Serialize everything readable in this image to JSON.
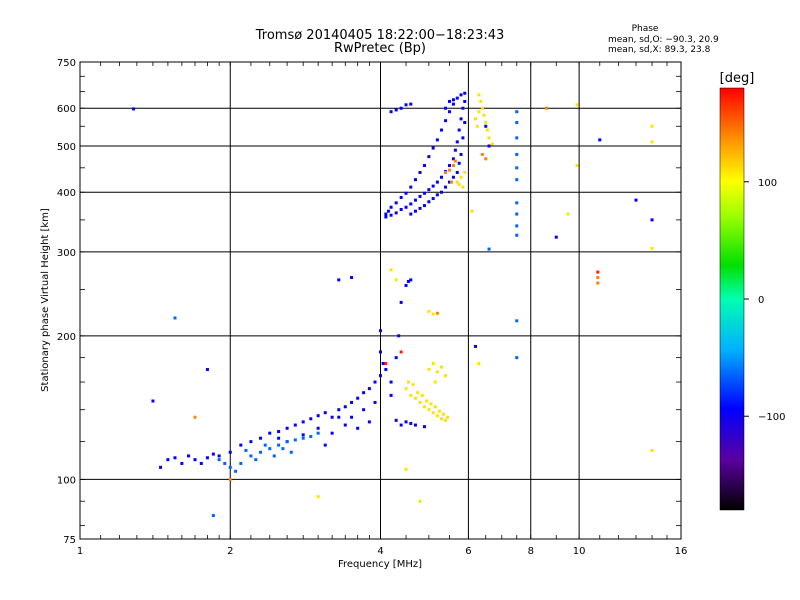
{
  "chart_data": {
    "type": "scatter",
    "title": "Tromsø 20140405 18:22:00−18:23:43",
    "subtitle": "RwPretec (Bp)",
    "xlabel": "Frequency [MHz]",
    "ylabel": "Stationary phase Virtual Height [km]",
    "x_scale": "log2",
    "y_scale": "log",
    "xlim": [
      1,
      16
    ],
    "ylim": [
      75,
      750
    ],
    "x_ticks": [
      1,
      2,
      4,
      6,
      8,
      10,
      16
    ],
    "x_tick_labels": [
      "1",
      "2",
      "4",
      "6",
      "8",
      "10",
      "16"
    ],
    "x_gridlines": [
      2,
      4,
      6,
      8,
      10
    ],
    "y_ticks": [
      75,
      100,
      200,
      300,
      400,
      500,
      600,
      750
    ],
    "y_tick_labels": [
      "75",
      "100",
      "200",
      "300",
      "400",
      "500",
      "600",
      "750"
    ],
    "y_gridlines": [
      100,
      200,
      300,
      400,
      500,
      600
    ],
    "grid": true,
    "legend_title": "Phase",
    "legend_lines": [
      "mean, sd,O: −90.3, 20.9",
      "mean, sd,X:  89.3, 23.8"
    ],
    "legend_position": "top-right",
    "colorbar": {
      "label": "[deg]",
      "min": -180,
      "max": 180,
      "ticks": [
        100,
        0,
        -100
      ],
      "tick_labels": [
        "100",
        "0",
        "−100"
      ],
      "colormap": "rainbow"
    },
    "series": [
      {
        "color_value_deg": -95,
        "points": [
          [
            1.28,
            598
          ],
          [
            1.4,
            146
          ],
          [
            1.45,
            106
          ],
          [
            1.5,
            110
          ],
          [
            1.55,
            111
          ],
          [
            1.6,
            108
          ],
          [
            1.65,
            112
          ],
          [
            1.7,
            110
          ],
          [
            1.75,
            108
          ],
          [
            1.8,
            111
          ],
          [
            1.85,
            113
          ],
          [
            1.9,
            112
          ],
          [
            2.0,
            114
          ],
          [
            2.1,
            118
          ],
          [
            2.2,
            120
          ],
          [
            2.3,
            122
          ],
          [
            2.4,
            125
          ],
          [
            2.5,
            126
          ],
          [
            2.6,
            128
          ],
          [
            2.7,
            130
          ],
          [
            2.8,
            132
          ],
          [
            2.9,
            134
          ],
          [
            3.0,
            136
          ],
          [
            3.1,
            138
          ],
          [
            3.2,
            135
          ],
          [
            3.3,
            140
          ],
          [
            3.4,
            142
          ],
          [
            3.5,
            145
          ],
          [
            3.6,
            148
          ],
          [
            3.7,
            152
          ],
          [
            3.8,
            155
          ],
          [
            3.9,
            160
          ],
          [
            4.0,
            165
          ],
          [
            4.0,
            185
          ],
          [
            4.0,
            205
          ],
          [
            4.05,
            175
          ],
          [
            4.1,
            170
          ],
          [
            4.2,
            160
          ],
          [
            4.3,
            180
          ],
          [
            4.35,
            200
          ],
          [
            4.4,
            235
          ],
          [
            4.5,
            255
          ],
          [
            4.2,
            150
          ],
          [
            4.3,
            133
          ],
          [
            4.5,
            132
          ],
          [
            4.7,
            130
          ],
          [
            4.9,
            129
          ],
          [
            4.4,
            130
          ],
          [
            4.6,
            131
          ],
          [
            3.2,
            125
          ],
          [
            3.4,
            130
          ],
          [
            3.6,
            128
          ],
          [
            3.8,
            132
          ],
          [
            3.0,
            128
          ],
          [
            2.8,
            124
          ],
          [
            3.5,
            135
          ],
          [
            3.7,
            140
          ],
          [
            3.9,
            145
          ],
          [
            2.5,
            122
          ],
          [
            2.6,
            120
          ],
          [
            3.1,
            118
          ],
          [
            3.3,
            135
          ],
          [
            3.5,
            265
          ],
          [
            3.3,
            262
          ],
          [
            4.6,
            262
          ],
          [
            4.55,
            260
          ],
          [
            4.1,
            355
          ],
          [
            4.2,
            358
          ],
          [
            4.3,
            362
          ],
          [
            4.4,
            368
          ],
          [
            4.5,
            372
          ],
          [
            4.6,
            378
          ],
          [
            4.7,
            385
          ],
          [
            4.8,
            392
          ],
          [
            4.9,
            398
          ],
          [
            5.0,
            405
          ],
          [
            5.1,
            412
          ],
          [
            5.2,
            420
          ],
          [
            5.3,
            430
          ],
          [
            5.4,
            442
          ],
          [
            5.5,
            455
          ],
          [
            5.6,
            470
          ],
          [
            5.65,
            490
          ],
          [
            5.7,
            510
          ],
          [
            5.75,
            540
          ],
          [
            5.8,
            570
          ],
          [
            5.85,
            600
          ],
          [
            5.9,
            620
          ],
          [
            5.7,
            630
          ],
          [
            5.6,
            612
          ],
          [
            5.5,
            590
          ],
          [
            5.4,
            565
          ],
          [
            5.3,
            540
          ],
          [
            5.2,
            515
          ],
          [
            5.1,
            495
          ],
          [
            5.0,
            475
          ],
          [
            4.9,
            455
          ],
          [
            4.8,
            440
          ],
          [
            4.7,
            425
          ],
          [
            4.6,
            410
          ],
          [
            4.5,
            398
          ],
          [
            4.4,
            390
          ],
          [
            4.3,
            380
          ],
          [
            4.2,
            372
          ],
          [
            4.15,
            365
          ],
          [
            4.1,
            360
          ],
          [
            4.2,
            590
          ],
          [
            4.3,
            595
          ],
          [
            4.4,
            600
          ],
          [
            4.5,
            610
          ],
          [
            4.6,
            612
          ],
          [
            5.4,
            600
          ],
          [
            5.5,
            620
          ],
          [
            5.6,
            625
          ],
          [
            5.8,
            640
          ],
          [
            5.9,
            645
          ],
          [
            5.9,
            560
          ],
          [
            5.85,
            520
          ],
          [
            5.8,
            480
          ],
          [
            5.75,
            460
          ],
          [
            5.7,
            440
          ],
          [
            5.6,
            430
          ],
          [
            5.5,
            420
          ],
          [
            5.4,
            410
          ],
          [
            5.3,
            400
          ],
          [
            5.2,
            395
          ],
          [
            5.1,
            388
          ],
          [
            5.0,
            382
          ],
          [
            4.9,
            375
          ],
          [
            4.8,
            370
          ],
          [
            4.7,
            365
          ],
          [
            4.6,
            360
          ],
          [
            6.5,
            550
          ],
          [
            6.6,
            500
          ],
          [
            11.0,
            515
          ],
          [
            14.0,
            350
          ],
          [
            13.0,
            385
          ],
          [
            9.0,
            322
          ],
          [
            6.2,
            190
          ],
          [
            1.8,
            170
          ]
        ]
      },
      {
        "color_value_deg": -65,
        "points": [
          [
            1.9,
            110
          ],
          [
            2.0,
            106
          ],
          [
            2.1,
            108
          ],
          [
            2.2,
            112
          ],
          [
            2.3,
            114
          ],
          [
            2.4,
            116
          ],
          [
            2.5,
            118
          ],
          [
            2.6,
            120
          ],
          [
            2.7,
            121
          ],
          [
            2.8,
            122
          ],
          [
            2.9,
            123
          ],
          [
            3.0,
            125
          ],
          [
            2.15,
            115
          ],
          [
            2.25,
            110
          ],
          [
            2.35,
            118
          ],
          [
            2.45,
            112
          ],
          [
            2.55,
            116
          ],
          [
            2.65,
            114
          ],
          [
            1.95,
            108
          ],
          [
            2.05,
            104
          ],
          [
            7.5,
            590
          ],
          [
            7.5,
            560
          ],
          [
            7.5,
            520
          ],
          [
            7.5,
            480
          ],
          [
            7.5,
            450
          ],
          [
            7.5,
            425
          ],
          [
            7.5,
            380
          ],
          [
            7.5,
            360
          ],
          [
            7.5,
            340
          ],
          [
            7.5,
            325
          ],
          [
            7.5,
            215
          ],
          [
            7.5,
            180
          ],
          [
            6.6,
            304
          ],
          [
            1.55,
            218
          ],
          [
            1.85,
            84
          ]
        ]
      },
      {
        "color_value_deg": 110,
        "points": [
          [
            4.5,
            155
          ],
          [
            4.6,
            150
          ],
          [
            4.7,
            148
          ],
          [
            4.8,
            145
          ],
          [
            4.9,
            142
          ],
          [
            5.0,
            140
          ],
          [
            5.1,
            138
          ],
          [
            5.2,
            136
          ],
          [
            5.3,
            134
          ],
          [
            5.4,
            133
          ],
          [
            4.55,
            160
          ],
          [
            4.65,
            158
          ],
          [
            4.75,
            152
          ],
          [
            4.85,
            150
          ],
          [
            4.95,
            146
          ],
          [
            5.05,
            144
          ],
          [
            5.15,
            142
          ],
          [
            5.25,
            139
          ],
          [
            5.35,
            137
          ],
          [
            5.45,
            135
          ],
          [
            5.0,
            170
          ],
          [
            5.1,
            175
          ],
          [
            5.2,
            168
          ],
          [
            5.3,
            172
          ],
          [
            5.4,
            165
          ],
          [
            5.15,
            160
          ],
          [
            6.3,
            640
          ],
          [
            6.35,
            620
          ],
          [
            6.4,
            600
          ],
          [
            6.45,
            580
          ],
          [
            6.5,
            560
          ],
          [
            6.55,
            540
          ],
          [
            6.6,
            520
          ],
          [
            6.7,
            505
          ],
          [
            6.3,
            590
          ],
          [
            6.2,
            570
          ],
          [
            6.25,
            550
          ],
          [
            5.7,
            420
          ],
          [
            5.8,
            430
          ],
          [
            5.9,
            440
          ],
          [
            5.85,
            410
          ],
          [
            5.75,
            415
          ],
          [
            4.2,
            275
          ],
          [
            4.3,
            262
          ],
          [
            5.0,
            225
          ],
          [
            5.1,
            222
          ],
          [
            6.1,
            365
          ],
          [
            9.5,
            360
          ],
          [
            9.9,
            610
          ],
          [
            9.9,
            455
          ],
          [
            14.0,
            550
          ],
          [
            14.0,
            510
          ],
          [
            14.0,
            305
          ],
          [
            14.0,
            115
          ],
          [
            3.0,
            92
          ],
          [
            4.8,
            90
          ],
          [
            4.5,
            105
          ],
          [
            6.3,
            175
          ]
        ]
      },
      {
        "color_value_deg": 140,
        "points": [
          [
            5.5,
            445
          ],
          [
            5.6,
            455
          ],
          [
            5.65,
            465
          ],
          [
            5.4,
            440
          ],
          [
            5.55,
            420
          ],
          [
            6.4,
            480
          ],
          [
            6.5,
            470
          ],
          [
            8.6,
            600
          ],
          [
            10.9,
            265
          ],
          [
            10.9,
            258
          ],
          [
            5.2,
            223
          ],
          [
            1.7,
            135
          ],
          [
            2.0,
            100
          ]
        ]
      },
      {
        "color_value_deg": 170,
        "points": [
          [
            10.9,
            272
          ],
          [
            4.1,
            175
          ],
          [
            4.4,
            185
          ]
        ]
      }
    ]
  }
}
